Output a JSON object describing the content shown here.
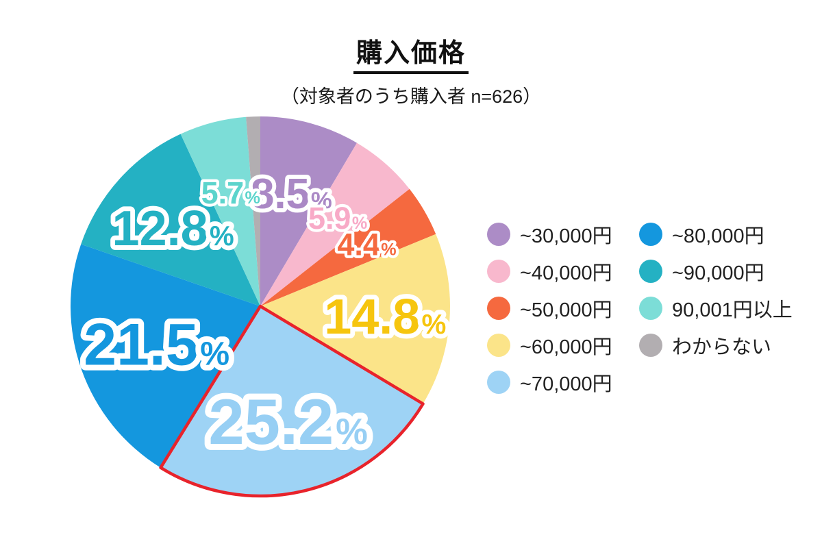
{
  "title": "購入価格",
  "subtitle": "（対象者のうち購入者 n=626）",
  "chart_data": {
    "type": "pie",
    "title": "購入価格",
    "subtitle": "（対象者のうち購入者 n=626）",
    "sample_note": "n=626",
    "start_angle_deg": 0,
    "direction": "clockwise",
    "legend_position": "right",
    "legend_columns": 2,
    "label_outline_color": "#ffffff",
    "highlight_stroke_color": "#e8232b",
    "slices": [
      {
        "label": "~30,000円",
        "value": 8.5,
        "percent_label": "8.5%",
        "color": "#ac8cc6",
        "label_color": "#aa88c5",
        "label_size": 62,
        "label_r": 0.62,
        "show_label": true,
        "highlighted": false
      },
      {
        "label": "~40,000円",
        "value": 5.9,
        "percent_label": "5.9%",
        "color": "#f8b8cd",
        "label_color": "#f8aac7",
        "label_size": 45,
        "label_r": 0.62,
        "show_label": true,
        "highlighted": false
      },
      {
        "label": "~50,000円",
        "value": 4.4,
        "percent_label": "4.4%",
        "color": "#f5693f",
        "label_color": "#f5693f",
        "label_size": 45,
        "label_r": 0.65,
        "show_label": true,
        "highlighted": false
      },
      {
        "label": "~60,000円",
        "value": 14.8,
        "percent_label": "14.8%",
        "color": "#fbe489",
        "label_color": "#f6c50e",
        "label_size": 72,
        "label_r": 0.66,
        "show_label": true,
        "highlighted": false
      },
      {
        "label": "~70,000円",
        "value": 25.2,
        "percent_label": "25.2%",
        "color": "#9ed3f5",
        "label_color": "#97cff4",
        "label_size": 94,
        "label_r": 0.62,
        "show_label": true,
        "highlighted": true
      },
      {
        "label": "~80,000円",
        "value": 21.5,
        "percent_label": "21.5%",
        "color": "#1497de",
        "label_color": "#1497de",
        "label_size": 86,
        "label_r": 0.58,
        "show_label": true,
        "highlighted": false
      },
      {
        "label": "~90,000円",
        "value": 12.8,
        "percent_label": "12.8%",
        "color": "#24b1c3",
        "label_color": "#24b1c3",
        "label_size": 72,
        "label_r": 0.62,
        "show_label": true,
        "highlighted": false
      },
      {
        "label": "90,001円以上",
        "value": 5.7,
        "percent_label": "5.7%",
        "color": "#7cddd7",
        "label_color": "#5cd4cc",
        "label_size": 45,
        "label_r": 0.62,
        "show_label": true,
        "highlighted": false
      },
      {
        "label": "わからない",
        "value": 1.2,
        "percent_label": "",
        "color": "#b2aeb1",
        "label_color": "",
        "label_size": 0,
        "label_r": 0,
        "show_label": false,
        "highlighted": false
      }
    ]
  }
}
